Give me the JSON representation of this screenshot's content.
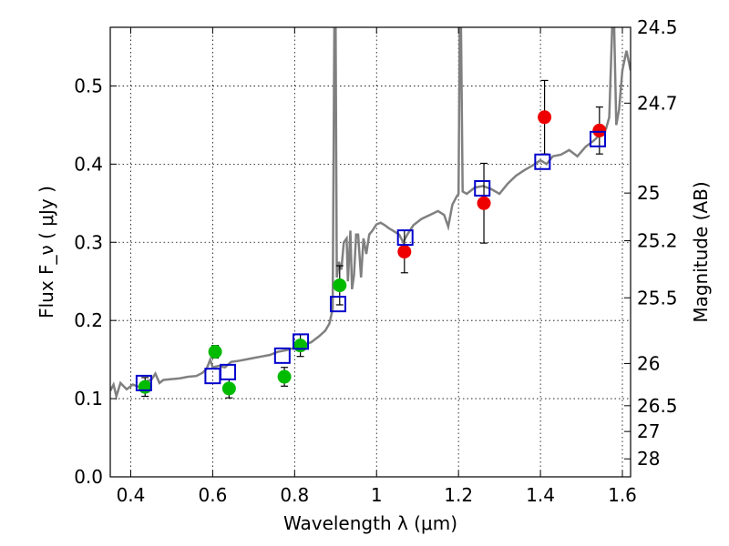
{
  "chart_data": {
    "type": "scatter",
    "xlabel": "Wavelength  λ (μm)",
    "ylabel": "Flux  F_ν  ( μJy )",
    "ylabel_right": "Magnitude (AB)",
    "xlim": [
      0.35,
      1.62
    ],
    "ylim": [
      0.0,
      0.575
    ],
    "grid": true,
    "x_ticks": [
      0.4,
      0.6,
      0.8,
      1.0,
      1.2,
      1.4,
      1.6
    ],
    "x_tick_labels": [
      "0.4",
      "0.6",
      "0.8",
      "1",
      "1.2",
      "1.4",
      "1.6"
    ],
    "y_ticks": [
      0.0,
      0.1,
      0.2,
      0.3,
      0.4,
      0.5
    ],
    "y_tick_labels": [
      "0.0",
      "0.1",
      "0.2",
      "0.3",
      "0.4",
      "0.5"
    ],
    "right_ticks": [
      {
        "label": "24.5",
        "flux": 0.575
      },
      {
        "label": "24.7",
        "flux": 0.478
      },
      {
        "label": "25",
        "flux": 0.363
      },
      {
        "label": "25.2",
        "flux": 0.302
      },
      {
        "label": "25.5",
        "flux": 0.229
      },
      {
        "label": "26",
        "flux": 0.145
      },
      {
        "label": "26.5",
        "flux": 0.091
      },
      {
        "label": "27",
        "flux": 0.058
      },
      {
        "label": "28",
        "flux": 0.023
      }
    ],
    "series": [
      {
        "role": "green-points",
        "color": "#00bb00",
        "points": [
          {
            "x": 0.435,
            "y": 0.115,
            "err": 0.012
          },
          {
            "x": 0.606,
            "y": 0.16,
            "err": 0.008
          },
          {
            "x": 0.64,
            "y": 0.113,
            "err": 0.012
          },
          {
            "x": 0.775,
            "y": 0.128,
            "err": 0.012
          },
          {
            "x": 0.814,
            "y": 0.168,
            "err": 0.014
          },
          {
            "x": 0.91,
            "y": 0.245,
            "err": 0.025
          }
        ]
      },
      {
        "role": "red-points",
        "color": "#ee0000",
        "points": [
          {
            "x": 1.068,
            "y": 0.288,
            "err": 0.027
          },
          {
            "x": 1.262,
            "y": 0.35,
            "err": 0.051
          },
          {
            "x": 1.41,
            "y": 0.46,
            "err": 0.047
          },
          {
            "x": 1.544,
            "y": 0.443,
            "err": 0.03
          }
        ]
      },
      {
        "role": "model-squares",
        "color": "#0000cc",
        "points": [
          {
            "x": 0.432,
            "y": 0.12
          },
          {
            "x": 0.6,
            "y": 0.129
          },
          {
            "x": 0.637,
            "y": 0.134
          },
          {
            "x": 0.77,
            "y": 0.155
          },
          {
            "x": 0.815,
            "y": 0.173
          },
          {
            "x": 0.906,
            "y": 0.221
          },
          {
            "x": 1.07,
            "y": 0.306
          },
          {
            "x": 1.258,
            "y": 0.369
          },
          {
            "x": 1.405,
            "y": 0.403
          },
          {
            "x": 1.54,
            "y": 0.432
          }
        ]
      },
      {
        "role": "template-spectrum",
        "color": "#808080",
        "line": [
          [
            0.35,
            0.11
          ],
          [
            0.358,
            0.118
          ],
          [
            0.365,
            0.103
          ],
          [
            0.375,
            0.12
          ],
          [
            0.39,
            0.112
          ],
          [
            0.405,
            0.118
          ],
          [
            0.42,
            0.115
          ],
          [
            0.435,
            0.122
          ],
          [
            0.45,
            0.124
          ],
          [
            0.46,
            0.132
          ],
          [
            0.47,
            0.12
          ],
          [
            0.48,
            0.124
          ],
          [
            0.5,
            0.125
          ],
          [
            0.52,
            0.126
          ],
          [
            0.54,
            0.128
          ],
          [
            0.56,
            0.129
          ],
          [
            0.575,
            0.133
          ],
          [
            0.585,
            0.138
          ],
          [
            0.594,
            0.15
          ],
          [
            0.6,
            0.14
          ],
          [
            0.615,
            0.142
          ],
          [
            0.63,
            0.14
          ],
          [
            0.645,
            0.147
          ],
          [
            0.66,
            0.148
          ],
          [
            0.68,
            0.15
          ],
          [
            0.7,
            0.152
          ],
          [
            0.72,
            0.154
          ],
          [
            0.74,
            0.156
          ],
          [
            0.76,
            0.16
          ],
          [
            0.78,
            0.162
          ],
          [
            0.8,
            0.165
          ],
          [
            0.82,
            0.169
          ],
          [
            0.84,
            0.172
          ],
          [
            0.86,
            0.18
          ],
          [
            0.875,
            0.187
          ],
          [
            0.885,
            0.196
          ],
          [
            0.893,
            0.215
          ],
          [
            0.897,
            0.575
          ],
          [
            0.9,
            0.575
          ],
          [
            0.903,
            0.255
          ],
          [
            0.908,
            0.275
          ],
          [
            0.914,
            0.265
          ],
          [
            0.92,
            0.3
          ],
          [
            0.927,
            0.305
          ],
          [
            0.93,
            0.25
          ],
          [
            0.936,
            0.315
          ],
          [
            0.94,
            0.24
          ],
          [
            0.945,
            0.258
          ],
          [
            0.95,
            0.31
          ],
          [
            0.955,
            0.31
          ],
          [
            0.962,
            0.255
          ],
          [
            0.968,
            0.305
          ],
          [
            0.975,
            0.285
          ],
          [
            0.982,
            0.31
          ],
          [
            0.99,
            0.315
          ],
          [
            1.0,
            0.323
          ],
          [
            1.01,
            0.325
          ],
          [
            1.02,
            0.322
          ],
          [
            1.03,
            0.318
          ],
          [
            1.04,
            0.315
          ],
          [
            1.055,
            0.31
          ],
          [
            1.065,
            0.3
          ],
          [
            1.075,
            0.31
          ],
          [
            1.09,
            0.322
          ],
          [
            1.11,
            0.33
          ],
          [
            1.13,
            0.335
          ],
          [
            1.15,
            0.34
          ],
          [
            1.165,
            0.335
          ],
          [
            1.175,
            0.32
          ],
          [
            1.185,
            0.348
          ],
          [
            1.195,
            0.358
          ],
          [
            1.2,
            0.362
          ],
          [
            1.203,
            0.575
          ],
          [
            1.206,
            0.575
          ],
          [
            1.21,
            0.365
          ],
          [
            1.22,
            0.362
          ],
          [
            1.24,
            0.37
          ],
          [
            1.26,
            0.372
          ],
          [
            1.28,
            0.368
          ],
          [
            1.3,
            0.362
          ],
          [
            1.32,
            0.375
          ],
          [
            1.34,
            0.385
          ],
          [
            1.36,
            0.392
          ],
          [
            1.38,
            0.398
          ],
          [
            1.4,
            0.405
          ],
          [
            1.415,
            0.4
          ],
          [
            1.43,
            0.41
          ],
          [
            1.45,
            0.412
          ],
          [
            1.47,
            0.418
          ],
          [
            1.49,
            0.41
          ],
          [
            1.51,
            0.422
          ],
          [
            1.53,
            0.43
          ],
          [
            1.55,
            0.44
          ],
          [
            1.56,
            0.445
          ],
          [
            1.568,
            0.46
          ],
          [
            1.575,
            0.575
          ],
          [
            1.58,
            0.575
          ],
          [
            1.585,
            0.45
          ],
          [
            1.592,
            0.47
          ],
          [
            1.6,
            0.52
          ],
          [
            1.61,
            0.545
          ],
          [
            1.62,
            0.52
          ]
        ]
      }
    ]
  }
}
